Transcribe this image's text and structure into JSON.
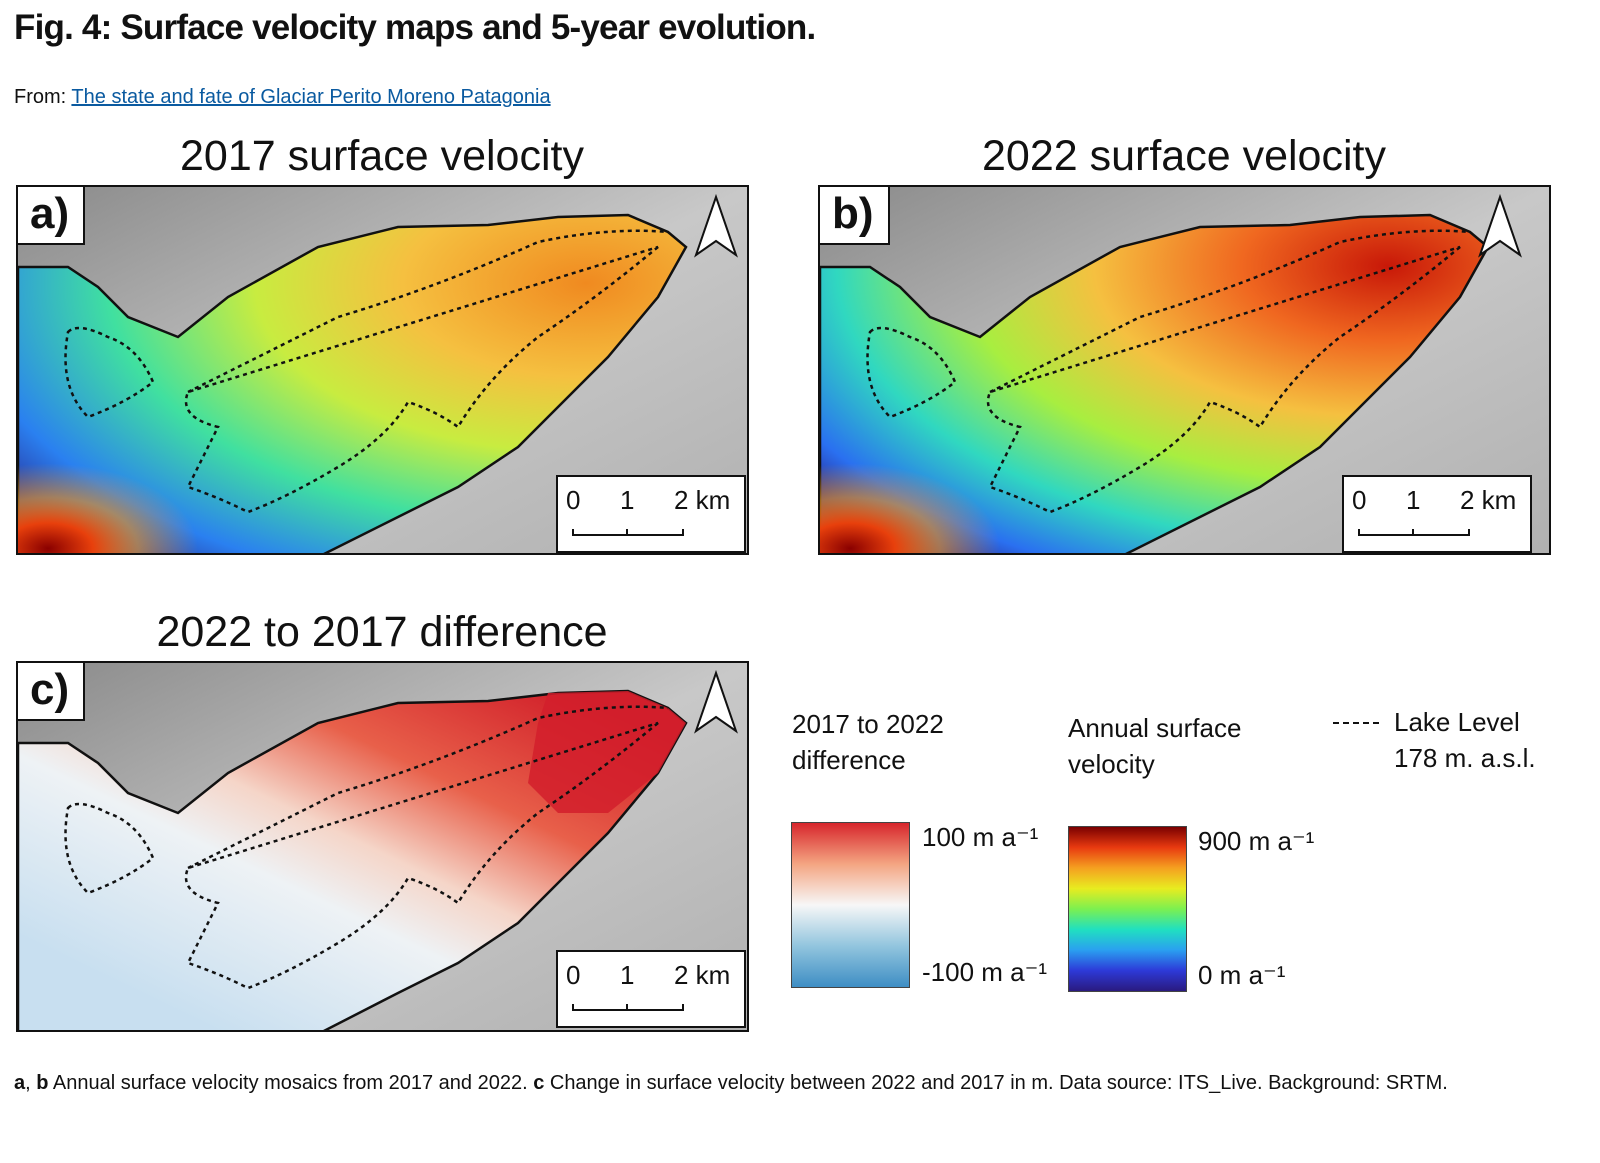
{
  "figure": {
    "title": "Fig. 4: Surface velocity maps and 5-year evolution.",
    "from_prefix": "From:",
    "from_link": "The state and fate of Glaciar Perito Moreno Patagonia"
  },
  "panels": [
    {
      "title": "2017 surface velocity",
      "label": "a)"
    },
    {
      "title": "2022 surface velocity",
      "label": "b)"
    },
    {
      "title": "2022 to 2017 difference",
      "label": "c)"
    }
  ],
  "scale_bar": {
    "t0": "0",
    "t1": "1",
    "t2": "2 km"
  },
  "north_arrow": "north-arrow-icon",
  "legend": {
    "difference": {
      "title_line1": "2017 to 2022",
      "title_line2": "difference",
      "max": "100 m a⁻¹",
      "min": "-100 m a⁻¹",
      "colors": [
        "#d7262c",
        "#f4a582",
        "#f7f7f7",
        "#92c5de",
        "#3e8ec4"
      ]
    },
    "velocity": {
      "title_line1": "Annual surface",
      "title_line2": "velocity",
      "max": "900 m a⁻¹",
      "min": "0 m a⁻¹",
      "colors": [
        "#7a0000",
        "#e83a10",
        "#f5a020",
        "#e8ec20",
        "#7cf050",
        "#20e0c0",
        "#2aa0f0",
        "#2d3ad8",
        "#2a1a80"
      ]
    },
    "lake": {
      "line1": "Lake Level",
      "line2": "178 m. a.s.l."
    }
  },
  "caption": {
    "a": "a",
    "sep": ", ",
    "b": "b",
    "part1": " Annual surface velocity mosaics from 2017 and 2022. ",
    "c": "c",
    "part2": " Change in surface velocity between 2022 and 2017 in m. Data source: ITS_Live. Background: SRTM."
  }
}
